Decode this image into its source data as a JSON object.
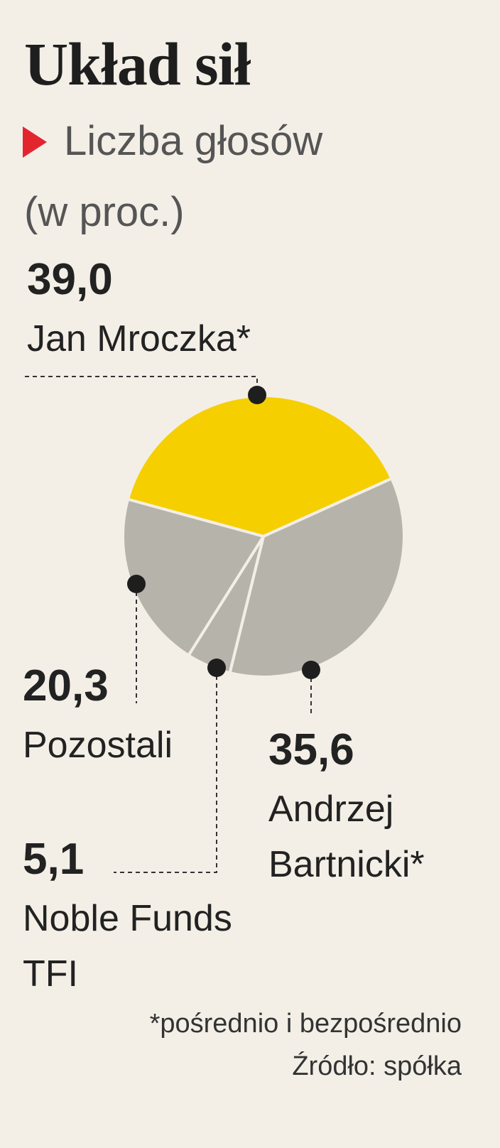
{
  "chart_data": {
    "type": "pie",
    "title": "Układ sił",
    "subtitle": "Liczba głosów",
    "unit": "(w proc.)",
    "categories": [
      "Jan Mroczka*",
      "Andrzej Bartnicki*",
      "Noble Funds TFI",
      "Pozostali"
    ],
    "values": [
      39.0,
      35.6,
      5.1,
      20.3
    ],
    "value_labels": [
      "39,0",
      "35,6",
      "5,1",
      "20,3"
    ],
    "colors": [
      "#f6cf00",
      "#b6b3ab",
      "#b6b3ab",
      "#b6b3ab"
    ],
    "footnote": "*pośrednio i bezpośrednio",
    "source": "Źródło: spółka"
  }
}
